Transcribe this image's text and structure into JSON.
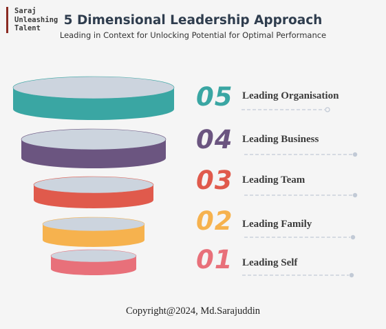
{
  "brand": {
    "line1": "Saraj",
    "line2": "Unleashing",
    "line3": "Talent"
  },
  "header": {
    "title": "5 Dimensional Leadership Approach",
    "subtitle": "Leading in Context for Unlocking Potential for Optimal Performance"
  },
  "levels": [
    {
      "number": "05",
      "label": "Leading Organisation",
      "color": "#3aa6a3"
    },
    {
      "number": "04",
      "label": "Leading Business",
      "color": "#6b5580"
    },
    {
      "number": "03",
      "label": "Leading Team",
      "color": "#e05a4c"
    },
    {
      "number": "02",
      "label": "Leading Family",
      "color": "#f6b24e"
    },
    {
      "number": "01",
      "label": "Leading Self",
      "color": "#e8707a"
    }
  ],
  "colors": {
    "top_face": "#ccd4de",
    "rule": "#c2cad6",
    "text": "#3a3a3a"
  },
  "footer": {
    "copyright": "Copyright@2024, Md.Sarajuddin"
  }
}
